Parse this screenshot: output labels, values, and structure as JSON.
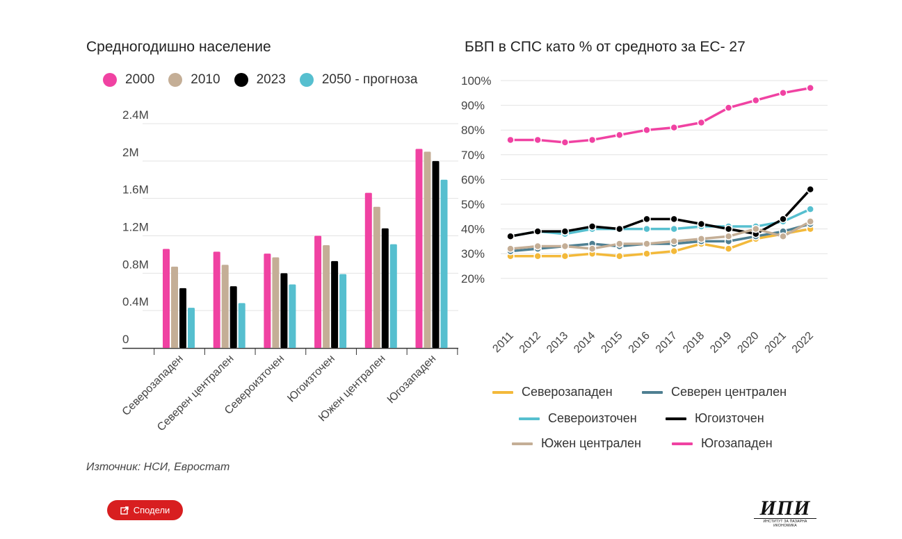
{
  "left_title": "Средногодишно население",
  "right_title": "БВП в СПС като % от средното за ЕС- 27",
  "legend_left": [
    {
      "label": "2000",
      "color": "#f042a2"
    },
    {
      "label": "2010",
      "color": "#c4ae96"
    },
    {
      "label": "2023",
      "color": "#000000"
    },
    {
      "label": "2050 - прогноза",
      "color": "#56bfcf"
    }
  ],
  "chart_data": [
    {
      "type": "bar",
      "title": "Средногодишно население",
      "categories": [
        "Северозападен",
        "Северен централен",
        "Североизточен",
        "Югоизточен",
        "Южен централен",
        "Югозападен"
      ],
      "y_ticks": [
        "0",
        "0.4M",
        "0.8M",
        "1.2M",
        "1.6M",
        "2M",
        "2.4M"
      ],
      "ylim": [
        0,
        2400000
      ],
      "grid": true,
      "series": [
        {
          "name": "2000",
          "color": "#f042a2",
          "values": [
            1060000,
            1030000,
            1010000,
            1200000,
            1660000,
            2130000
          ]
        },
        {
          "name": "2010",
          "color": "#c4ae96",
          "values": [
            870000,
            890000,
            970000,
            1100000,
            1510000,
            2100000
          ]
        },
        {
          "name": "2023",
          "color": "#000000",
          "values": [
            640000,
            660000,
            800000,
            930000,
            1280000,
            2000000
          ]
        },
        {
          "name": "2050 - прогноза",
          "color": "#56bfcf",
          "values": [
            430000,
            480000,
            680000,
            790000,
            1110000,
            1800000
          ]
        }
      ]
    },
    {
      "type": "line",
      "title": "БВП в СПС като % от средното за ЕС- 27",
      "x": [
        "2011",
        "2012",
        "2013",
        "2014",
        "2015",
        "2016",
        "2017",
        "2018",
        "2019",
        "2020",
        "2021",
        "2022"
      ],
      "y_ticks": [
        "20%",
        "30%",
        "40%",
        "50%",
        "60%",
        "70%",
        "80%",
        "90%",
        "100%"
      ],
      "ylim": [
        20,
        100
      ],
      "grid": true,
      "legend_position": "bottom",
      "series": [
        {
          "name": "Северозападен",
          "color": "#f3b93a",
          "values": [
            29,
            29,
            29,
            30,
            29,
            30,
            31,
            34,
            32,
            36,
            38,
            40
          ]
        },
        {
          "name": "Северен централен",
          "color": "#4e7f92",
          "values": [
            31,
            32,
            33,
            34,
            33,
            34,
            34,
            35,
            35,
            37,
            39,
            42
          ]
        },
        {
          "name": "Североизточен",
          "color": "#56bfcf",
          "values": [
            37,
            39,
            38,
            40,
            40,
            40,
            40,
            41,
            41,
            41,
            43,
            48
          ]
        },
        {
          "name": "Югоизточен",
          "color": "#000000",
          "values": [
            37,
            39,
            39,
            41,
            40,
            44,
            44,
            42,
            40,
            38,
            44,
            56
          ]
        },
        {
          "name": "Южен централен",
          "color": "#c4ae96",
          "values": [
            32,
            33,
            33,
            32,
            34,
            34,
            35,
            36,
            37,
            40,
            37,
            43
          ]
        },
        {
          "name": "Югозападен",
          "color": "#f042a2",
          "values": [
            76,
            76,
            75,
            76,
            78,
            80,
            81,
            83,
            89,
            92,
            95,
            97
          ]
        }
      ]
    }
  ],
  "source": "Източник: НСИ, Евростат",
  "share_label": "Сподели",
  "logo": {
    "text": "ИПИ",
    "subtext": "ИНСТИТУТ ЗА ПАЗАРНА ИКОНОМИКА"
  }
}
